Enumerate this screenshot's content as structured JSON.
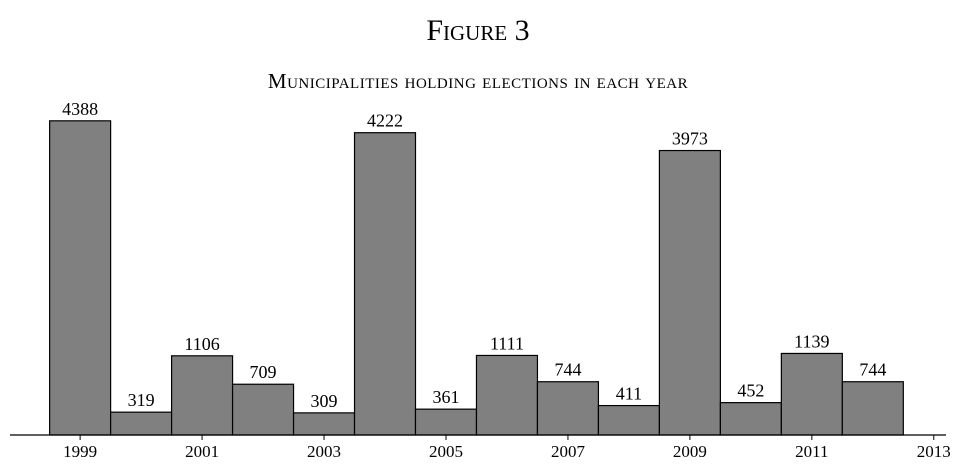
{
  "chart_data": {
    "type": "bar",
    "title": "Figure 3",
    "subtitle": "Municipalities holding elections in each year",
    "x": [
      1999,
      2000,
      2001,
      2002,
      2003,
      2004,
      2005,
      2006,
      2007,
      2008,
      2009,
      2010,
      2011,
      2012
    ],
    "values": [
      4388,
      319,
      1106,
      709,
      309,
      4222,
      361,
      1111,
      744,
      411,
      3973,
      452,
      1139,
      744
    ],
    "color": "#808080",
    "xlim": [
      1997.85,
      2013.2
    ],
    "xticks": [
      1999,
      2001,
      2003,
      2005,
      2007,
      2009,
      2011,
      2013
    ],
    "ylim": [
      0,
      5000
    ]
  }
}
